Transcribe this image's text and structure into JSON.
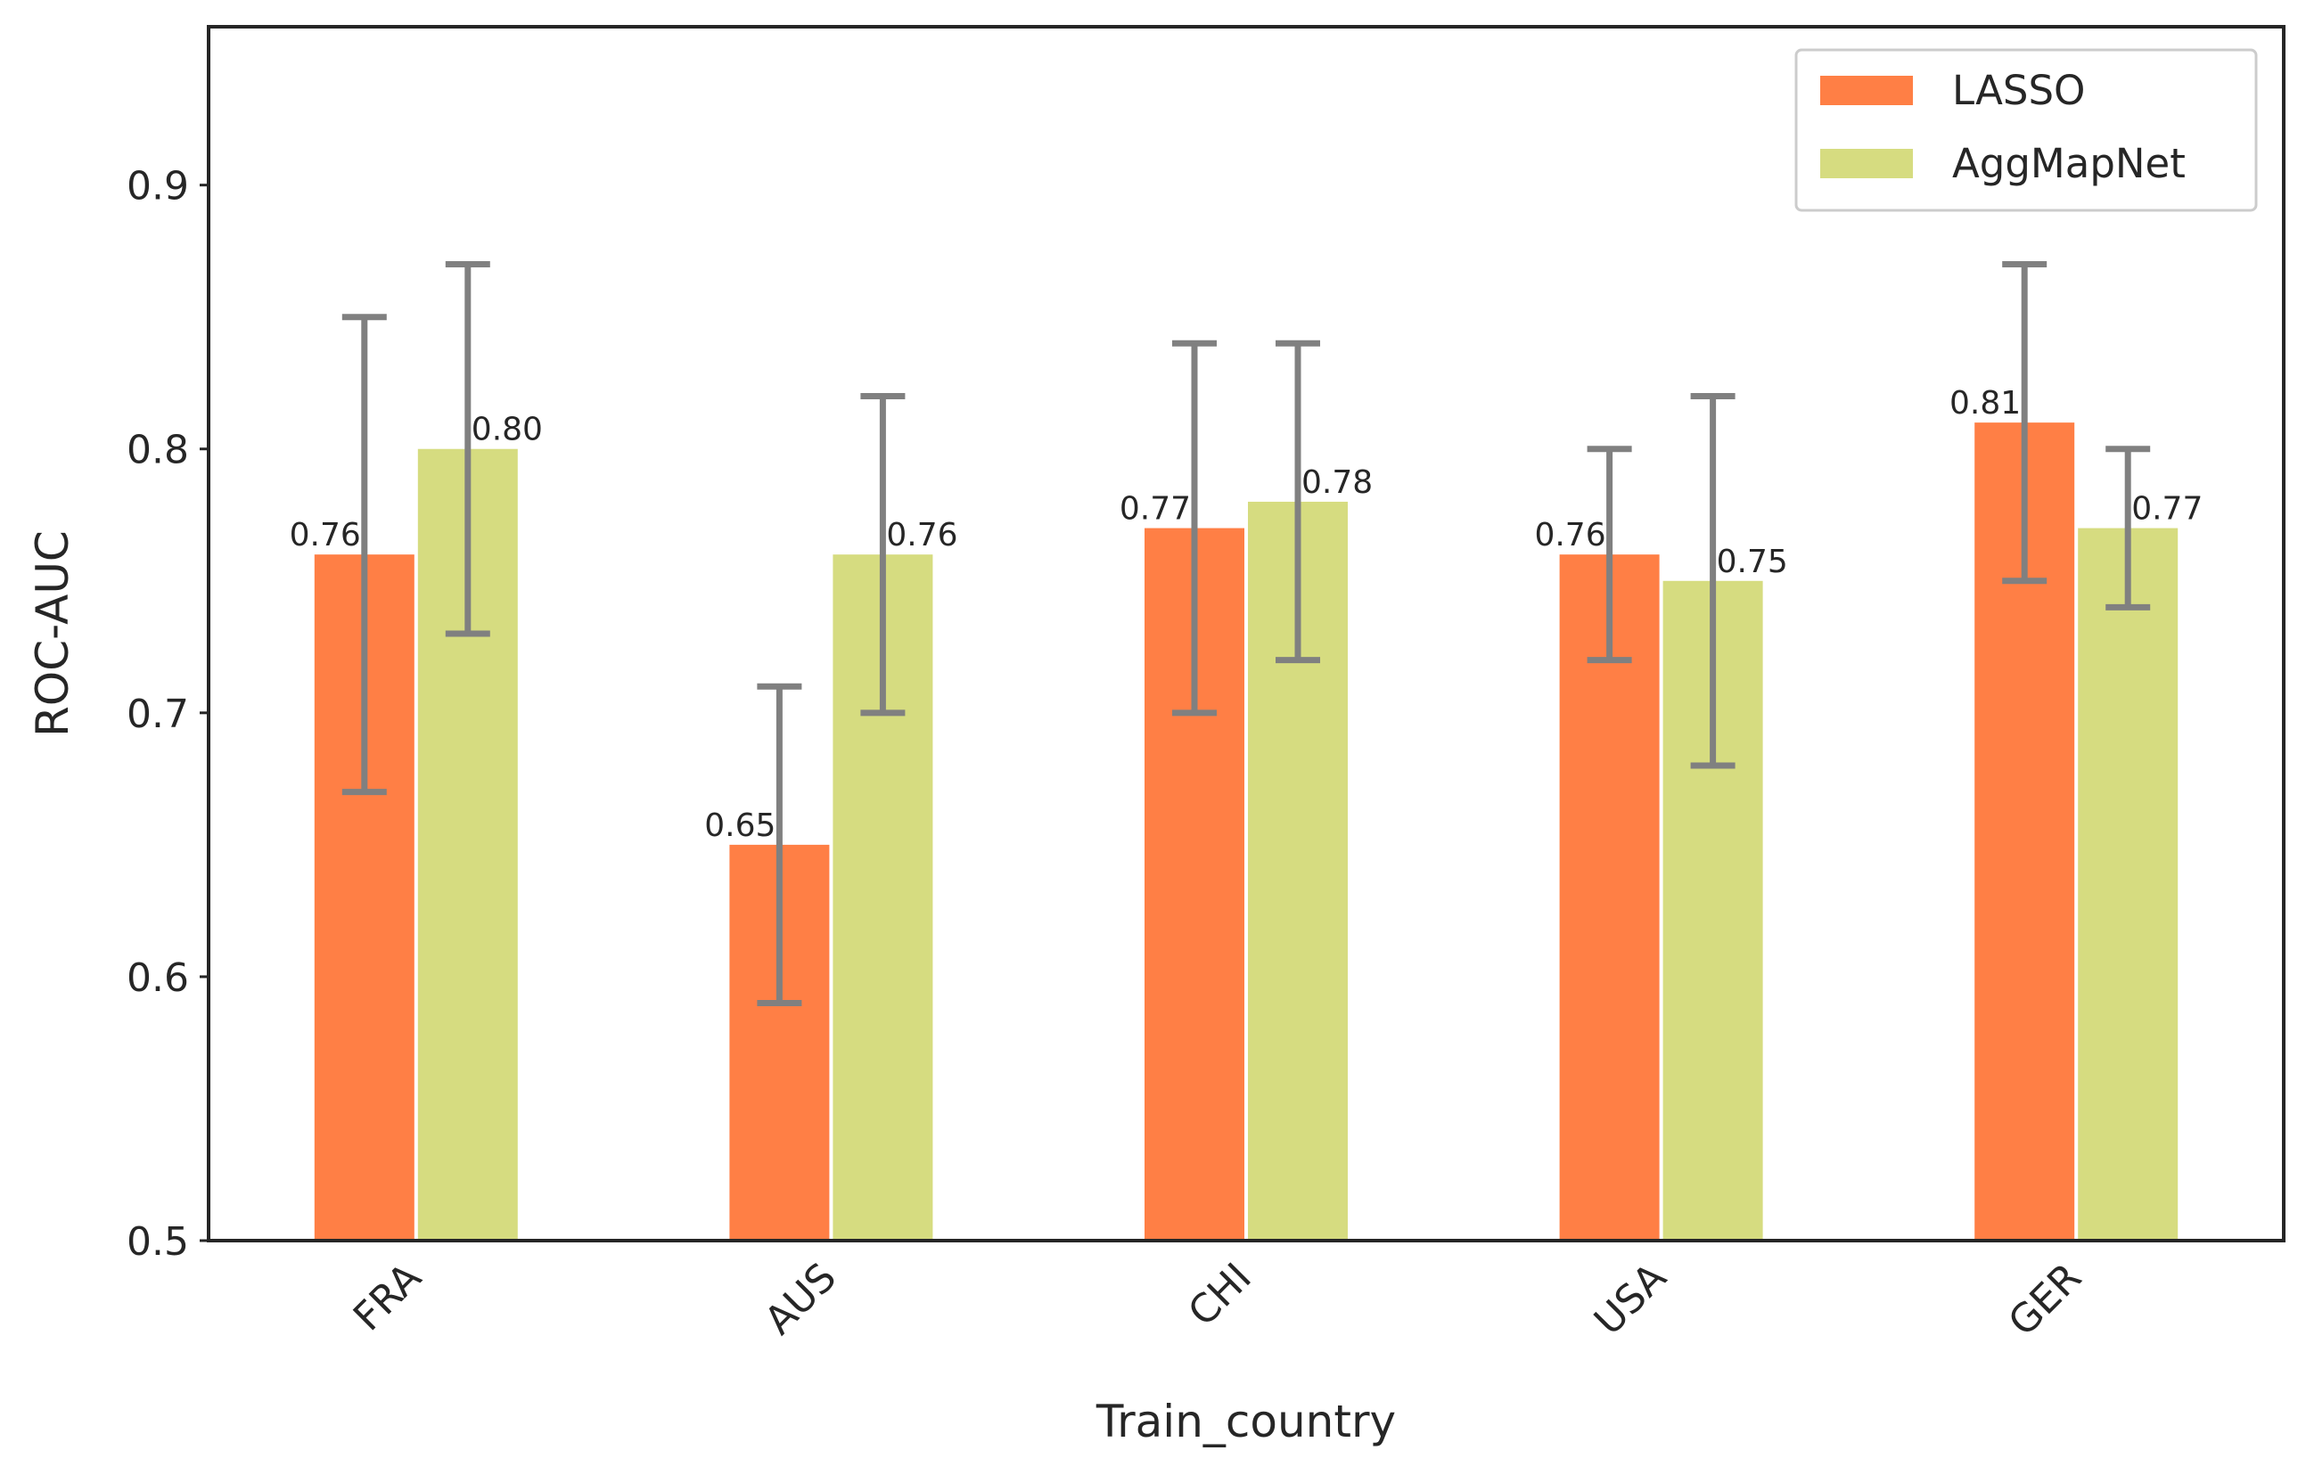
{
  "chart_data": {
    "type": "bar",
    "categories": [
      "FRA",
      "AUS",
      "CHI",
      "USA",
      "GER"
    ],
    "series": [
      {
        "name": "LASSO",
        "color": "#ff7f45",
        "values": [
          0.76,
          0.65,
          0.77,
          0.76,
          0.81
        ],
        "error_low": [
          0.67,
          0.59,
          0.7,
          0.72,
          0.75
        ],
        "error_high": [
          0.85,
          0.71,
          0.84,
          0.8,
          0.87
        ],
        "labels": [
          "0.76",
          "0.65",
          "0.77",
          "0.76",
          "0.81"
        ]
      },
      {
        "name": "AggMapNet",
        "color": "#d6dc80",
        "values": [
          0.8,
          0.76,
          0.78,
          0.75,
          0.77
        ],
        "error_low": [
          0.73,
          0.7,
          0.72,
          0.68,
          0.74
        ],
        "error_high": [
          0.87,
          0.82,
          0.84,
          0.82,
          0.8
        ],
        "labels": [
          "0.80",
          "0.76",
          "0.78",
          "0.75",
          "0.77"
        ]
      }
    ],
    "error_bar_color": "#808080",
    "xlabel": "Train_country",
    "ylabel": "ROC-AUC",
    "ylim": [
      0.5,
      0.96
    ],
    "yticks": [
      "0.5",
      "0.6",
      "0.7",
      "0.8",
      "0.9"
    ],
    "grid": false,
    "legend_position": "top-right"
  }
}
